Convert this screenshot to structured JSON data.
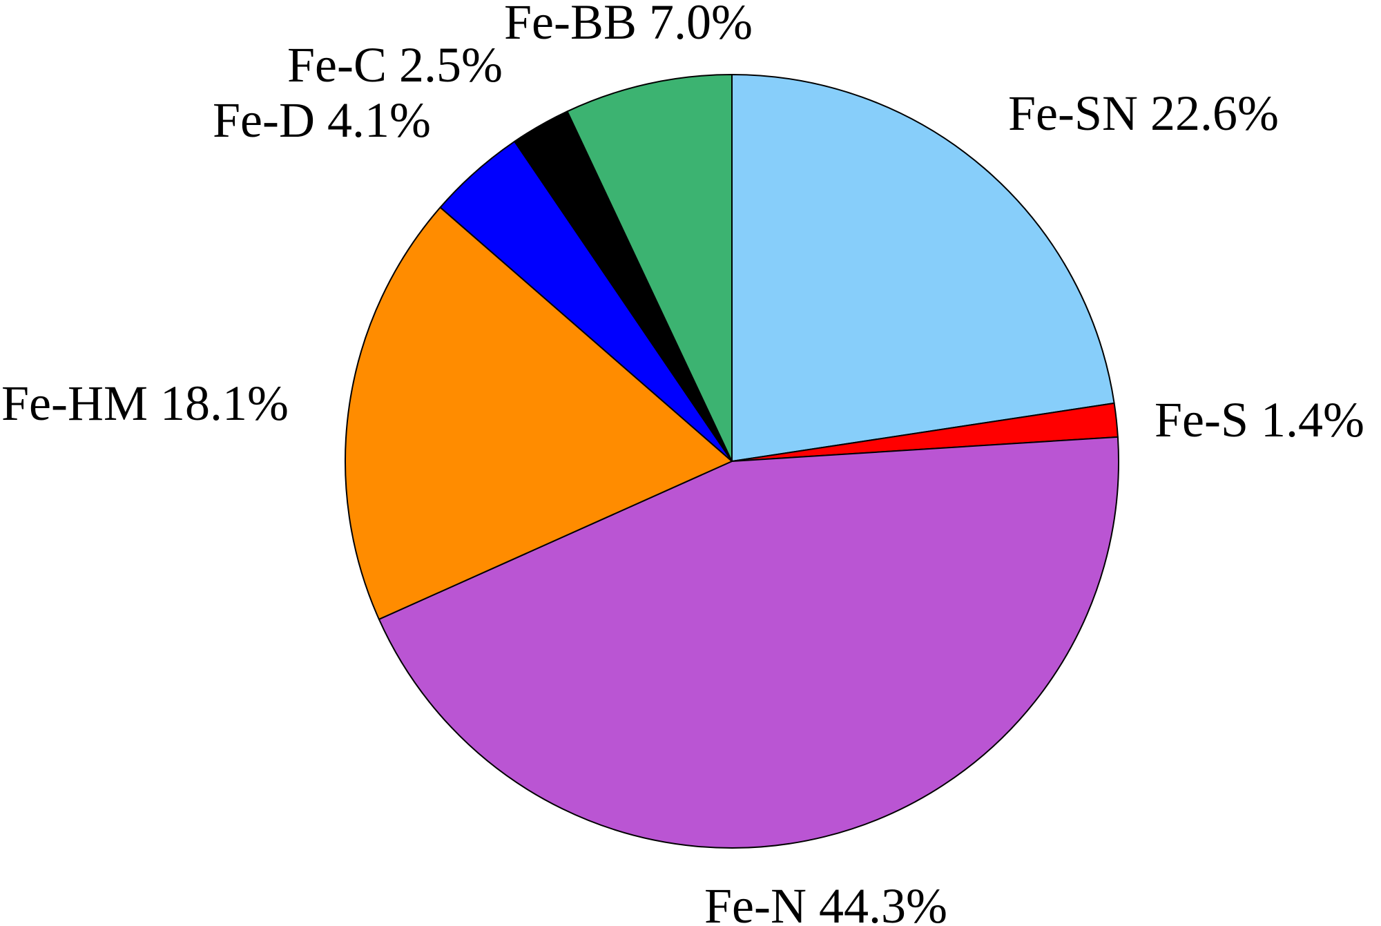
{
  "chart_data": {
    "type": "pie",
    "start_angle": "12 o'clock",
    "direction": "clockwise",
    "slices": [
      {
        "label": "Fe-SN 22.6%",
        "name": "Fe-SN",
        "value": 22.6,
        "color": "#87CEFA"
      },
      {
        "label": "Fe-S 1.4%",
        "name": "Fe-S",
        "value": 1.4,
        "color": "#FF0000"
      },
      {
        "label": "Fe-N 44.3%",
        "name": "Fe-N",
        "value": 44.3,
        "color": "#BA55D3"
      },
      {
        "label": "Fe-HM 18.1%",
        "name": "Fe-HM",
        "value": 18.1,
        "color": "#FF8C00"
      },
      {
        "label": "Fe-D 4.1%",
        "name": "Fe-D",
        "value": 4.1,
        "color": "#0000FF"
      },
      {
        "label": "Fe-C 2.5%",
        "name": "Fe-C",
        "value": 2.5,
        "color": "#000000"
      },
      {
        "label": "Fe-BB 7.0%",
        "name": "Fe-BB",
        "value": 7.0,
        "color": "#3CB371"
      }
    ]
  }
}
